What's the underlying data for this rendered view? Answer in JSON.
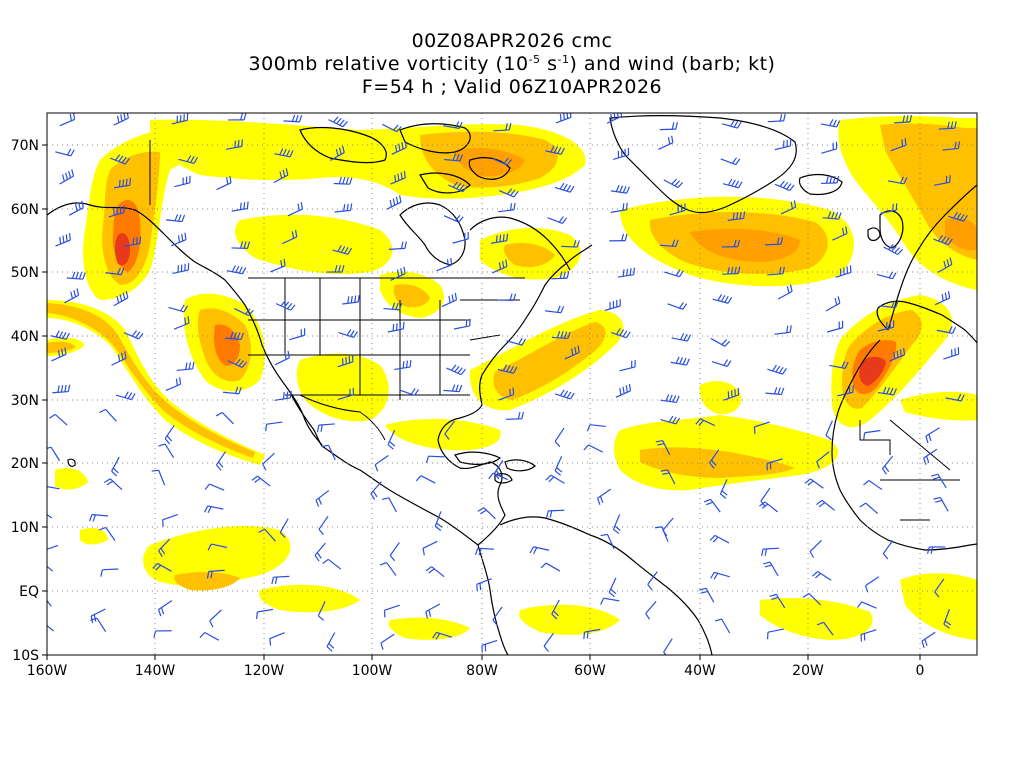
{
  "title": {
    "line1": "00Z08APR2026 cmc",
    "line2_pre": "300mb relative vorticity (10",
    "line2_sup1": "-5",
    "line2_mid": " s",
    "line2_sup2": "-1",
    "line2_post": ") and wind (barb; kt)",
    "line3": "F=54 h ; Valid 06Z10APR2026"
  },
  "axes": {
    "lon_labels": [
      "160W",
      "140W",
      "120W",
      "100W",
      "80W",
      "60W",
      "40W",
      "20W",
      "0"
    ],
    "lat_labels": [
      "70N",
      "60N",
      "50N",
      "40N",
      "30N",
      "20N",
      "10N",
      "EQ",
      "10S"
    ]
  },
  "colors": {
    "light": "#ffff00",
    "light2": "#ffe100",
    "mid": "#ffc000",
    "mid2": "#ffa000",
    "strong": "#ff7a00",
    "max": "#e8391a",
    "barb": "#2a4fe0",
    "coast": "#000000",
    "grid": "#8a8a8a"
  }
}
